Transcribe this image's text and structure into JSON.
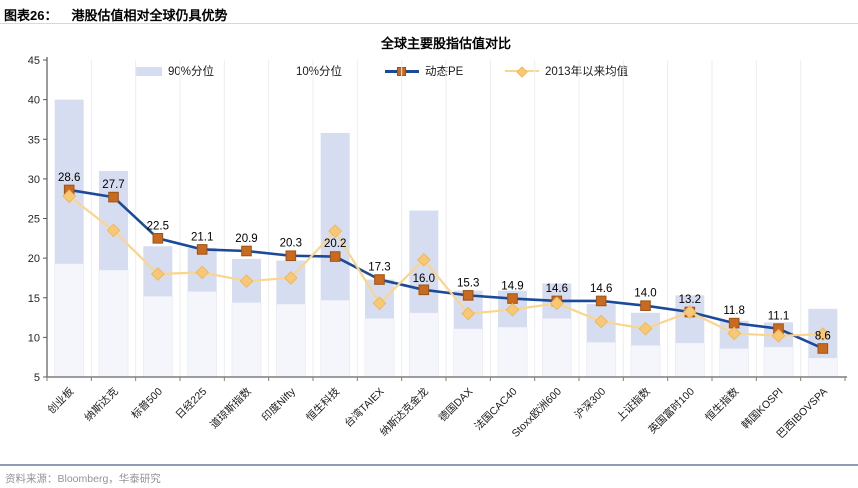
{
  "header": {
    "figure_label": "图表26：",
    "figure_title": "港股估值相对全球仍具优势"
  },
  "footer": {
    "source": "资料来源：Bloomberg，华泰研究"
  },
  "colors": {
    "range_bar": "#d7ddf1",
    "range_bar_lower_faint": "#f4f6fb",
    "pe_line": "#1b4a9b",
    "pe_marker": "#c96a1e",
    "pe_marker_edge": "#9c5313",
    "mean_line": "#fad58d",
    "mean_marker": "#f9c874",
    "mean_marker_edge": "#efb85e",
    "axis": "#7f7f7f",
    "gridline": "#ededf0",
    "footer_rule": "#8e9db3"
  },
  "chart_data": {
    "type": "combo (floating percentile range bars + two lines)",
    "title": "全球主要股指估值对比",
    "legend": [
      {
        "label": "90%分位",
        "swatch": "bar",
        "color": "#d7ddf1"
      },
      {
        "label": "10%分位",
        "swatch": "none",
        "color": "transparent"
      },
      {
        "label": "动态PE",
        "swatch": "line-square",
        "line_color": "#1b4a9b",
        "marker_color": "#c96a1e"
      },
      {
        "label": "2013年以来均值",
        "swatch": "line-diamond",
        "line_color": "#fad58d",
        "marker_color": "#f9c874"
      }
    ],
    "y_axis": {
      "min": 5,
      "max": 45,
      "step": 5,
      "tick_labels": [
        "5",
        "10",
        "15",
        "20",
        "25",
        "30",
        "35",
        "40",
        "45"
      ]
    },
    "grid": "vertical category separators only",
    "categories": [
      "创业板",
      "纳斯达克",
      "标普500",
      "日经225",
      "道琼斯指数",
      "印度Nifty",
      "恒生科技",
      "台湾TAIEX",
      "纳斯达克金龙",
      "德国DAX",
      "法国CAC40",
      "Stoxx欧洲600",
      "沪深300",
      "上证指数",
      "英国富时100",
      "恒生指数",
      "韩国KOSPI",
      "巴西IBOVSPA"
    ],
    "series": [
      {
        "name": "90%分位",
        "type": "range_top",
        "values": [
          40.0,
          31.0,
          21.5,
          21.3,
          19.9,
          19.7,
          35.8,
          17.3,
          26.0,
          15.9,
          15.9,
          16.8,
          14.2,
          13.1,
          15.3,
          12.1,
          11.9,
          13.6
        ]
      },
      {
        "name": "10%分位",
        "type": "range_bottom",
        "values": [
          19.3,
          18.5,
          15.2,
          15.8,
          14.4,
          14.2,
          14.7,
          12.4,
          13.1,
          11.1,
          11.3,
          12.4,
          9.4,
          9.0,
          9.3,
          8.6,
          8.8,
          7.4
        ]
      },
      {
        "name": "动态PE",
        "type": "line",
        "values": [
          28.6,
          27.7,
          22.5,
          21.1,
          20.9,
          20.3,
          20.2,
          17.3,
          16.0,
          15.3,
          14.9,
          14.6,
          14.6,
          14.0,
          13.2,
          11.8,
          11.1,
          8.6
        ],
        "data_labels": [
          "28.6",
          "27.7",
          "22.5",
          "21.1",
          "20.9",
          "20.3",
          "20.2",
          "17.3",
          "16.0",
          "15.3",
          "14.9",
          "14.6",
          "14.6",
          "14.0",
          "13.2",
          "11.8",
          "11.1",
          "8.6"
        ]
      },
      {
        "name": "2013年以来均值",
        "type": "line",
        "values": [
          27.8,
          23.5,
          18.0,
          18.2,
          17.1,
          17.5,
          23.4,
          14.3,
          19.8,
          13.0,
          13.5,
          14.3,
          12.0,
          11.1,
          13.2,
          10.5,
          10.2,
          10.4
        ]
      }
    ]
  }
}
